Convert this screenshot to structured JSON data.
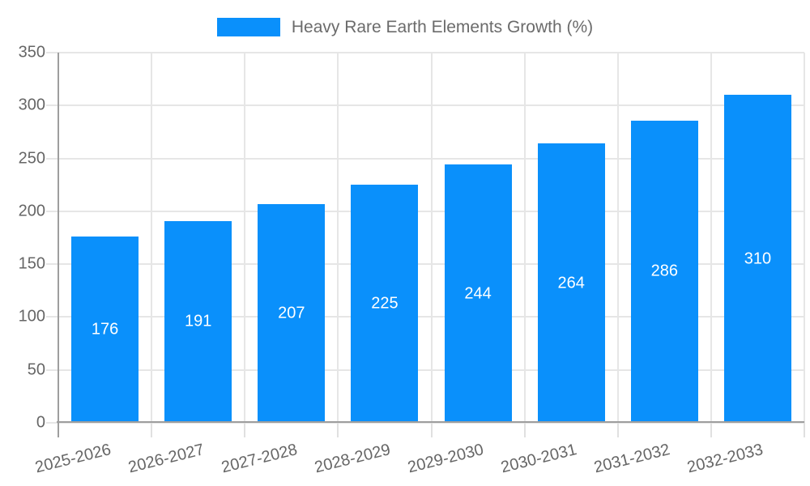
{
  "legend": {
    "label": "Heavy Rare Earth Elements Growth (%)"
  },
  "colors": {
    "bar": "#0a90fb",
    "gridline": "#e6e6e6",
    "tick": "#e0e0e0",
    "axis_line": "#9e9e9e",
    "axis_text": "#666666",
    "bar_value_text": "#ffffff",
    "background": "#ffffff"
  },
  "chart_data": {
    "type": "bar",
    "title": "",
    "legend_entries": [
      "Heavy Rare Earth Elements Growth (%)"
    ],
    "legend_position": "top",
    "categories": [
      "2025-2026",
      "2026-2027",
      "2027-2028",
      "2028-2029",
      "2029-2030",
      "2030-2031",
      "2031-2032",
      "2032-2033"
    ],
    "series": [
      {
        "name": "Heavy Rare Earth Elements Growth (%)",
        "values": [
          176,
          191,
          207,
          225,
          244,
          264,
          286,
          310
        ],
        "color": "#0a90fb"
      }
    ],
    "xlabel": "",
    "ylabel": "",
    "ylim": [
      0,
      350
    ],
    "yticks": [
      0,
      50,
      100,
      150,
      200,
      250,
      300,
      350
    ],
    "grid": true,
    "bar_value_labels": true,
    "x_label_rotation_deg": -14
  }
}
